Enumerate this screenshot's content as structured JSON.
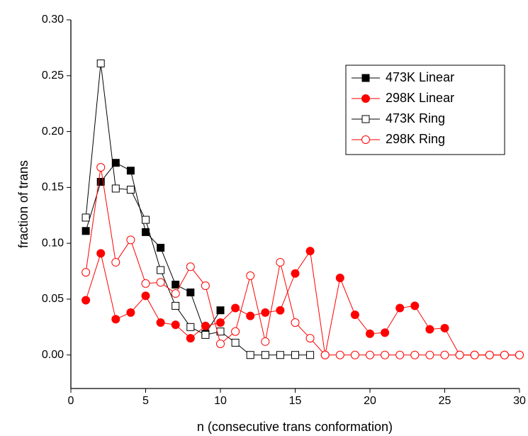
{
  "chart_data": {
    "type": "line",
    "x_label": "n (consecutive trans conformation)",
    "y_label": "fraction of trans",
    "xlim": [
      0,
      30
    ],
    "ylim": [
      -0.03,
      0.3
    ],
    "xticks": [
      0,
      5,
      10,
      15,
      20,
      25,
      30
    ],
    "yticks": [
      {
        "value": 0,
        "label": "0.00"
      },
      {
        "value": 0.05,
        "label": "0.05"
      },
      {
        "value": 0.1,
        "label": "0.10"
      },
      {
        "value": 0.15,
        "label": "0.15"
      },
      {
        "value": 0.2,
        "label": "0.20"
      },
      {
        "value": 0.25,
        "label": "0.25"
      },
      {
        "value": 0.3,
        "label": "0.30"
      }
    ],
    "legend": "upper right",
    "series": [
      {
        "name": "473K Linear",
        "color": "#000000",
        "marker": "square",
        "filled": true,
        "x": [
          1,
          2,
          3,
          4,
          5,
          6,
          7,
          8,
          9,
          10
        ],
        "values": [
          0.111,
          0.155,
          0.172,
          0.165,
          0.11,
          0.096,
          0.063,
          0.056,
          0.019,
          0.04
        ]
      },
      {
        "name": "298K Linear",
        "color": "#ff0000",
        "marker": "circle",
        "filled": true,
        "x": [
          1,
          2,
          3,
          4,
          5,
          6,
          7,
          8,
          9,
          10,
          11,
          12,
          13,
          14,
          15,
          16,
          17,
          18,
          19,
          20,
          21,
          22,
          23,
          24,
          25,
          26,
          27,
          28,
          29,
          30
        ],
        "values": [
          0.049,
          0.091,
          0.032,
          0.038,
          0.053,
          0.029,
          0.027,
          0.015,
          0.026,
          0.029,
          0.042,
          0.035,
          0.038,
          0.04,
          0.073,
          0.093,
          0,
          0.069,
          0.036,
          0.019,
          0.02,
          0.042,
          0.044,
          0.023,
          0.024,
          0,
          0,
          0,
          0,
          0
        ]
      },
      {
        "name": "473K Ring",
        "color": "#000000",
        "marker": "square",
        "filled": false,
        "x": [
          1,
          2,
          3,
          4,
          5,
          6,
          7,
          8,
          9,
          10,
          11,
          12,
          13,
          14,
          15,
          16
        ],
        "values": [
          0.123,
          0.261,
          0.149,
          0.148,
          0.121,
          0.076,
          0.044,
          0.025,
          0.018,
          0.021,
          0.011,
          0,
          0,
          0,
          0,
          0
        ]
      },
      {
        "name": "298K Ring",
        "color": "#ff0000",
        "marker": "circle",
        "filled": false,
        "x": [
          1,
          2,
          3,
          4,
          5,
          6,
          7,
          8,
          9,
          10,
          11,
          12,
          13,
          14,
          15,
          16,
          17,
          18,
          19,
          20,
          21,
          22,
          23,
          24,
          25,
          26,
          27,
          28,
          29,
          30
        ],
        "values": [
          0.074,
          0.168,
          0.083,
          0.103,
          0.064,
          0.065,
          0.055,
          0.079,
          0.062,
          0.01,
          0.021,
          0.071,
          0.012,
          0.083,
          0.029,
          0.015,
          0,
          0,
          0,
          0,
          0,
          0,
          0,
          0,
          0,
          0,
          0,
          0,
          0,
          0
        ]
      }
    ]
  }
}
